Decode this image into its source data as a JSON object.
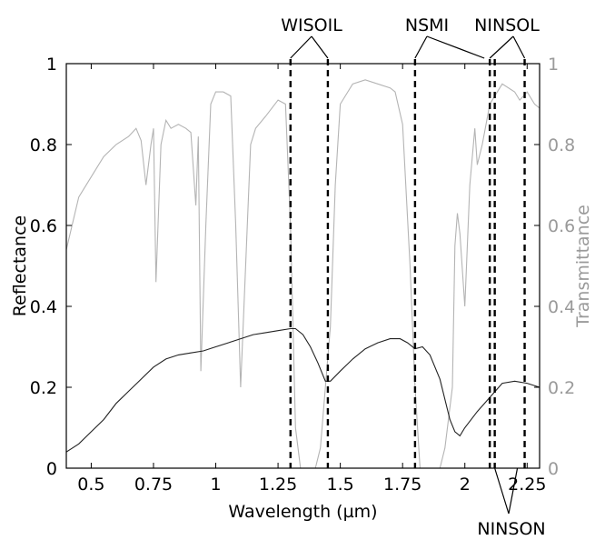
{
  "chart_data": {
    "type": "line",
    "xlabel": "Wavelength (µm)",
    "ylabel": "Reflectance",
    "y2label": "Transmittance",
    "xlim": [
      0.4,
      2.3
    ],
    "ylim": [
      0,
      1
    ],
    "y2lim": [
      0,
      1
    ],
    "xticks": [
      {
        "value": 0.5,
        "label": "0.5"
      },
      {
        "value": 0.75,
        "label": "0.75"
      },
      {
        "value": 1.0,
        "label": "1"
      },
      {
        "value": 1.25,
        "label": "1.25"
      },
      {
        "value": 1.5,
        "label": "1.5"
      },
      {
        "value": 1.75,
        "label": "1.75"
      },
      {
        "value": 2.0,
        "label": "2"
      },
      {
        "value": 2.25,
        "label": "2.25"
      }
    ],
    "yticks": [
      {
        "value": 0,
        "label": "0"
      },
      {
        "value": 0.2,
        "label": "0.2"
      },
      {
        "value": 0.4,
        "label": "0.4"
      },
      {
        "value": 0.6,
        "label": "0.6"
      },
      {
        "value": 0.8,
        "label": "0.8"
      },
      {
        "value": 1,
        "label": "1"
      }
    ],
    "grid": false,
    "colors": {
      "reflectance": "#222222",
      "transmittance": "#b4b4b4",
      "y2_axis_text": "#9a9a9a",
      "markers": "#000000"
    },
    "series": [
      {
        "axis": "left",
        "x": [
          0.4,
          0.45,
          0.5,
          0.55,
          0.6,
          0.65,
          0.7,
          0.75,
          0.8,
          0.85,
          0.9,
          0.95,
          1.0,
          1.05,
          1.1,
          1.15,
          1.2,
          1.25,
          1.3,
          1.32,
          1.35,
          1.38,
          1.41,
          1.44,
          1.46,
          1.5,
          1.55,
          1.6,
          1.65,
          1.7,
          1.74,
          1.77,
          1.8,
          1.83,
          1.86,
          1.9,
          1.92,
          1.94,
          1.96,
          1.98,
          2.0,
          2.05,
          2.1,
          2.15,
          2.2,
          2.25,
          2.3
        ],
        "y": [
          0.04,
          0.06,
          0.09,
          0.12,
          0.16,
          0.19,
          0.22,
          0.25,
          0.27,
          0.28,
          0.285,
          0.29,
          0.3,
          0.31,
          0.32,
          0.33,
          0.335,
          0.34,
          0.345,
          0.345,
          0.33,
          0.3,
          0.26,
          0.215,
          0.215,
          0.24,
          0.27,
          0.295,
          0.31,
          0.32,
          0.32,
          0.31,
          0.295,
          0.3,
          0.28,
          0.22,
          0.17,
          0.12,
          0.09,
          0.08,
          0.1,
          0.14,
          0.175,
          0.21,
          0.215,
          0.21,
          0.2
        ]
      },
      {
        "axis": "right",
        "x": [
          0.4,
          0.45,
          0.5,
          0.55,
          0.6,
          0.65,
          0.68,
          0.7,
          0.72,
          0.74,
          0.75,
          0.76,
          0.78,
          0.8,
          0.82,
          0.85,
          0.88,
          0.9,
          0.92,
          0.93,
          0.94,
          0.96,
          0.98,
          1.0,
          1.03,
          1.06,
          1.08,
          1.1,
          1.12,
          1.14,
          1.16,
          1.2,
          1.25,
          1.28,
          1.3,
          1.32,
          1.34,
          1.36,
          1.38,
          1.4,
          1.42,
          1.44,
          1.46,
          1.48,
          1.5,
          1.55,
          1.6,
          1.65,
          1.7,
          1.72,
          1.75,
          1.78,
          1.8,
          1.82,
          1.85,
          1.88,
          1.9,
          1.92,
          1.95,
          1.96,
          1.97,
          1.98,
          2.0,
          2.02,
          2.04,
          2.05,
          2.07,
          2.1,
          2.15,
          2.2,
          2.22,
          2.25,
          2.28,
          2.3
        ],
        "y": [
          0.54,
          0.67,
          0.72,
          0.77,
          0.8,
          0.82,
          0.84,
          0.81,
          0.7,
          0.8,
          0.84,
          0.46,
          0.8,
          0.86,
          0.84,
          0.85,
          0.84,
          0.83,
          0.65,
          0.82,
          0.24,
          0.6,
          0.9,
          0.93,
          0.93,
          0.92,
          0.6,
          0.2,
          0.5,
          0.8,
          0.84,
          0.87,
          0.91,
          0.9,
          0.6,
          0.1,
          0.0,
          0.0,
          0.0,
          0.0,
          0.05,
          0.2,
          0.35,
          0.7,
          0.9,
          0.95,
          0.96,
          0.95,
          0.94,
          0.93,
          0.85,
          0.5,
          0.2,
          0.0,
          0.0,
          0.0,
          0.0,
          0.05,
          0.2,
          0.55,
          0.63,
          0.58,
          0.4,
          0.7,
          0.84,
          0.75,
          0.8,
          0.9,
          0.95,
          0.93,
          0.91,
          0.93,
          0.9,
          0.89
        ]
      }
    ],
    "bands": [
      {
        "name": "WISOIL",
        "x": [
          1.3,
          1.45
        ]
      },
      {
        "name": "NSMI",
        "x": [
          1.8,
          2.1
        ]
      },
      {
        "name": "NINSOL",
        "x": [
          2.1,
          2.24
        ]
      },
      {
        "name": "NINSON",
        "x": [
          2.12,
          2.24
        ]
      }
    ],
    "band_labels": [
      "WISOIL",
      "NSMI",
      "NINSOL",
      "NINSON"
    ]
  }
}
